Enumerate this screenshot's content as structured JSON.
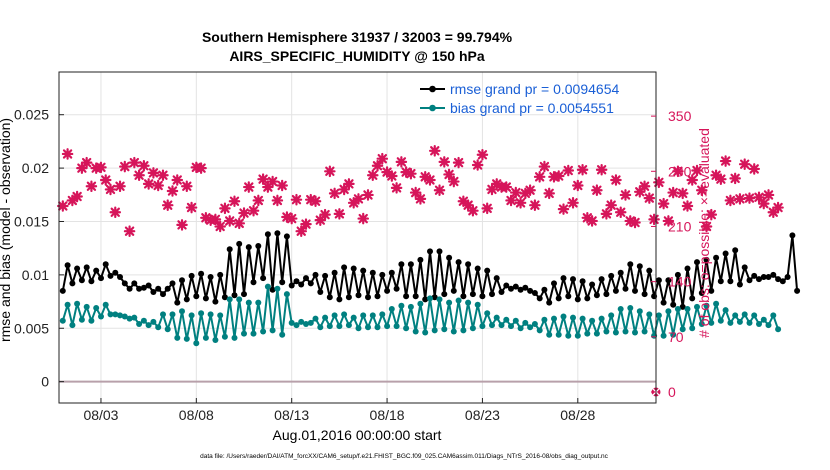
{
  "chart_data": {
    "type": "line",
    "title": "Southern Hemisphere 31937 / 32003 = 99.794%",
    "subtitle": "AIRS_SPECIFIC_HUMIDITY @ 150 hPa",
    "xlabel": "Aug.01,2016 00:00:00 start",
    "ylabel_left": "rmse and bias (model - observation)",
    "ylabel_right": "# of obs: o=possible; ×=evaluated",
    "xlim": [
      0.8,
      32.1
    ],
    "ylim_left": [
      -0.002,
      0.029
    ],
    "ylim_right": [
      -14,
      406
    ],
    "x_ticks": [
      3,
      8,
      13,
      18,
      23,
      28
    ],
    "x_tick_labels": [
      "08/03",
      "08/08",
      "08/13",
      "08/18",
      "08/23",
      "08/28"
    ],
    "y_ticks_left": [
      0,
      0.005,
      0.01,
      0.015,
      0.02,
      0.025
    ],
    "y_tick_labels_left": [
      "0",
      "0.005",
      "0.01",
      "0.015",
      "0.02",
      "0.025"
    ],
    "y_ticks_right": [
      0,
      70,
      140,
      210,
      280,
      350
    ],
    "y_tick_labels_right": [
      "0",
      "70",
      "140",
      "210",
      "280",
      "350"
    ],
    "grid": true,
    "colors": {
      "rmse": "#000000",
      "bias": "#008080",
      "obs": "#d6155a",
      "legend_text": "#1a5fd6",
      "zero_line": "#b8a0aa"
    },
    "legend": {
      "placement": "top-right",
      "entries": [
        {
          "name": "rmse grand pr = 0.0094654",
          "series": "rmse"
        },
        {
          "name": "bias grand pr = 0.0054551",
          "series": "bias"
        }
      ]
    },
    "series": [
      {
        "name": "rmse",
        "axis": "left",
        "x_start": 1.0,
        "x_step": 0.25,
        "values": [
          0.0085,
          0.0109,
          0.0092,
          0.0106,
          0.0095,
          0.0107,
          0.0094,
          0.0104,
          0.0097,
          0.011,
          0.0099,
          0.0102,
          0.0098,
          0.0092,
          0.0087,
          0.0092,
          0.0087,
          0.0088,
          0.009,
          0.0084,
          0.0087,
          0.0082,
          0.0087,
          0.0092,
          0.0074,
          0.0095,
          0.0077,
          0.0099,
          0.008,
          0.0101,
          0.0078,
          0.0098,
          0.0075,
          0.01,
          0.0079,
          0.0124,
          0.0081,
          0.0129,
          0.0082,
          0.0126,
          0.0093,
          0.0127,
          0.0097,
          0.0138,
          0.0086,
          0.0139,
          0.0093,
          0.0136,
          0.009,
          0.0094,
          0.0091,
          0.0097,
          0.0092,
          0.01,
          0.0084,
          0.0099,
          0.0079,
          0.0102,
          0.0077,
          0.0107,
          0.0079,
          0.0106,
          0.0081,
          0.0104,
          0.0079,
          0.0102,
          0.008,
          0.01,
          0.0085,
          0.0102,
          0.0087,
          0.011,
          0.008,
          0.011,
          0.008,
          0.0114,
          0.0077,
          0.0122,
          0.0079,
          0.0122,
          0.0082,
          0.0116,
          0.0085,
          0.0112,
          0.008,
          0.011,
          0.0082,
          0.0106,
          0.008,
          0.0104,
          0.0082,
          0.0097,
          0.0084,
          0.009,
          0.0087,
          0.0089,
          0.0086,
          0.0088,
          0.0085,
          0.0083,
          0.0078,
          0.0086,
          0.0074,
          0.0092,
          0.0078,
          0.0097,
          0.008,
          0.0096,
          0.0077,
          0.0094,
          0.0078,
          0.0091,
          0.0081,
          0.0096,
          0.0082,
          0.0099,
          0.0085,
          0.0102,
          0.0087,
          0.011,
          0.0085,
          0.0108,
          0.0082,
          0.0104,
          0.008,
          0.0095,
          0.0074,
          0.0095,
          0.0072,
          0.01,
          0.007,
          0.0106,
          0.0078,
          0.0112,
          0.0083,
          0.0114,
          0.0085,
          0.0116,
          0.0094,
          0.012,
          0.0094,
          0.0123,
          0.0091,
          0.0107,
          0.0095,
          0.0099,
          0.0096,
          0.0098,
          0.0098,
          0.01,
          0.0096,
          0.0094,
          0.0098,
          0.0137,
          0.0085
        ]
      },
      {
        "name": "bias",
        "axis": "left",
        "x_start": 1.0,
        "x_step": 0.25,
        "values": [
          0.0057,
          0.0072,
          0.0053,
          0.0073,
          0.0058,
          0.007,
          0.0057,
          0.0069,
          0.0061,
          0.0072,
          0.0063,
          0.0063,
          0.0062,
          0.0061,
          0.0059,
          0.006,
          0.0054,
          0.0057,
          0.0053,
          0.0056,
          0.0051,
          0.0063,
          0.0049,
          0.0063,
          0.0041,
          0.0066,
          0.004,
          0.0062,
          0.0036,
          0.0064,
          0.0041,
          0.0063,
          0.0039,
          0.0062,
          0.0042,
          0.0077,
          0.0041,
          0.0077,
          0.0045,
          0.0074,
          0.0045,
          0.0074,
          0.0047,
          0.0089,
          0.0048,
          0.0087,
          0.0044,
          0.0082,
          0.0055,
          0.0053,
          0.0056,
          0.0054,
          0.0055,
          0.0059,
          0.0051,
          0.006,
          0.0052,
          0.0062,
          0.0052,
          0.0063,
          0.0053,
          0.006,
          0.005,
          0.0062,
          0.0051,
          0.0062,
          0.0051,
          0.0063,
          0.0052,
          0.0068,
          0.0052,
          0.0071,
          0.005,
          0.007,
          0.0047,
          0.0073,
          0.0046,
          0.0078,
          0.0048,
          0.0077,
          0.0049,
          0.0074,
          0.0047,
          0.0076,
          0.0048,
          0.0074,
          0.005,
          0.0072,
          0.0052,
          0.0064,
          0.0053,
          0.006,
          0.0053,
          0.0058,
          0.0052,
          0.0057,
          0.005,
          0.0055,
          0.0051,
          0.0054,
          0.0048,
          0.0058,
          0.0044,
          0.0059,
          0.0044,
          0.0061,
          0.0043,
          0.006,
          0.0043,
          0.0059,
          0.0045,
          0.0057,
          0.0045,
          0.0059,
          0.0047,
          0.0062,
          0.0046,
          0.0068,
          0.0047,
          0.0069,
          0.0046,
          0.0066,
          0.0047,
          0.0063,
          0.0043,
          0.0062,
          0.0043,
          0.0066,
          0.0044,
          0.0068,
          0.0049,
          0.0068,
          0.005,
          0.007,
          0.0054,
          0.0071,
          0.0055,
          0.0073,
          0.0057,
          0.0067,
          0.0055,
          0.0062,
          0.0056,
          0.0063,
          0.0055,
          0.0062,
          0.0054,
          0.0058,
          0.0053,
          0.0062,
          0.0049
        ]
      },
      {
        "name": "obs",
        "axis": "right",
        "x_start": 1.0,
        "x_step": 0.25,
        "values": [
          236,
          302,
          243,
          248,
          284,
          291,
          261,
          284,
          285,
          269,
          257,
          228,
          261,
          286,
          204,
          291,
          275,
          287,
          264,
          278,
          262,
          275,
          237,
          255,
          269,
          212,
          261,
          234,
          285,
          284,
          221,
          218,
          219,
          210,
          233,
          217,
          242,
          214,
          227,
          260,
          230,
          243,
          270,
          260,
          267,
          243,
          262,
          222,
          220,
          244,
          204,
          213,
          244,
          242,
          218,
          225,
          280,
          252,
          226,
          257,
          264,
          240,
          245,
          220,
          250,
          275,
          287,
          296,
          279,
          274,
          259,
          292,
          279,
          277,
          253,
          245,
          273,
          269,
          306,
          256,
          292,
          276,
          267,
          291,
          242,
          237,
          230,
          288,
          301,
          233,
          257,
          264,
          260,
          260,
          243,
          253,
          240,
          252,
          256,
          237,
          273,
          286,
          252,
          273,
          274,
          232,
          281,
          240,
          262,
          282,
          221,
          217,
          256,
          282,
          226,
          237,
          269,
          228,
          250,
          217,
          215,
          254,
          261,
          246,
          219,
          266,
          239,
          217,
          253,
          280,
          252,
          236,
          269,
          281,
          256,
          210,
          225,
          275,
          270,
          293,
          243,
          271,
          245,
          289,
          246,
          283,
          247,
          239,
          250,
          228,
          234
        ]
      }
    ],
    "footnote": "data file: /Users/raeder/DAI/ATM_forcXX/CAM6_setup/f.e21.FHIST_BGC.f09_025.CAM6assim.011/Diags_NTrS_2016-08/obs_diag_output.nc"
  }
}
